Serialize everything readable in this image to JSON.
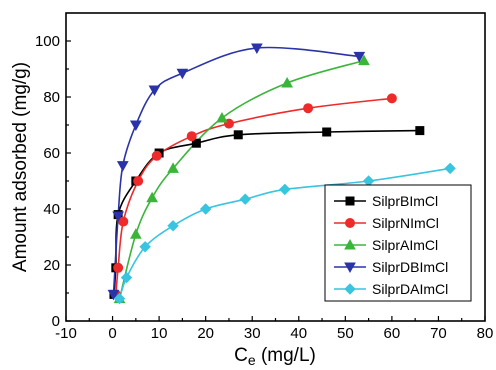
{
  "chart_data": {
    "type": "scatter",
    "xlabel_base": "C",
    "xlabel_sub": "e",
    "xlabel_unit": "(mg/L)",
    "ylabel": "Amount adsorbed (mg/g)",
    "xlim": [
      -10,
      80
    ],
    "ylim": [
      0,
      110
    ],
    "xticks": [
      -10,
      0,
      10,
      20,
      30,
      40,
      50,
      60,
      70,
      80
    ],
    "yticks": [
      0,
      20,
      40,
      60,
      80,
      100
    ],
    "legend_position": "lower-right",
    "series": [
      {
        "name": "SilprBImCl",
        "color": "#000000",
        "marker": "square",
        "points": [
          [
            0.3,
            9.5
          ],
          [
            0.7,
            19
          ],
          [
            1.2,
            38
          ],
          [
            5,
            50
          ],
          [
            10,
            60
          ],
          [
            18,
            63.5
          ],
          [
            27,
            66.5
          ],
          [
            46,
            67.5
          ],
          [
            66,
            68
          ]
        ]
      },
      {
        "name": "SilprNImCl",
        "color": "#ee2a2a",
        "marker": "circle",
        "points": [
          [
            0.7,
            9.5
          ],
          [
            1.2,
            19
          ],
          [
            2.3,
            35.5
          ],
          [
            5.5,
            50
          ],
          [
            9.5,
            59
          ],
          [
            17,
            66
          ],
          [
            25,
            70.5
          ],
          [
            42,
            76
          ],
          [
            60,
            79.5
          ]
        ]
      },
      {
        "name": "SilprAImCl",
        "color": "#3ab53a",
        "marker": "triangle-up",
        "points": [
          [
            1.5,
            8
          ],
          [
            5,
            31
          ],
          [
            8.5,
            44
          ],
          [
            13,
            54.5
          ],
          [
            23.5,
            72.5
          ],
          [
            37.5,
            85
          ],
          [
            54,
            93
          ]
        ]
      },
      {
        "name": "SilprDBImCl",
        "color": "#2a33a8",
        "marker": "triangle-down",
        "points": [
          [
            0.2,
            9.5
          ],
          [
            1.2,
            37.5
          ],
          [
            2.2,
            55.5
          ],
          [
            5,
            70
          ],
          [
            9,
            82.5
          ],
          [
            15,
            88.5
          ],
          [
            31,
            97.5
          ],
          [
            53,
            94.5
          ]
        ]
      },
      {
        "name": "SilprDAImCl",
        "color": "#39c4e0",
        "marker": "diamond",
        "points": [
          [
            1.5,
            8
          ],
          [
            3,
            15.5
          ],
          [
            7,
            26.5
          ],
          [
            13,
            34
          ],
          [
            20,
            40
          ],
          [
            28.5,
            43.5
          ],
          [
            37,
            47
          ],
          [
            55,
            50
          ],
          [
            72.5,
            54.5
          ]
        ]
      }
    ]
  }
}
